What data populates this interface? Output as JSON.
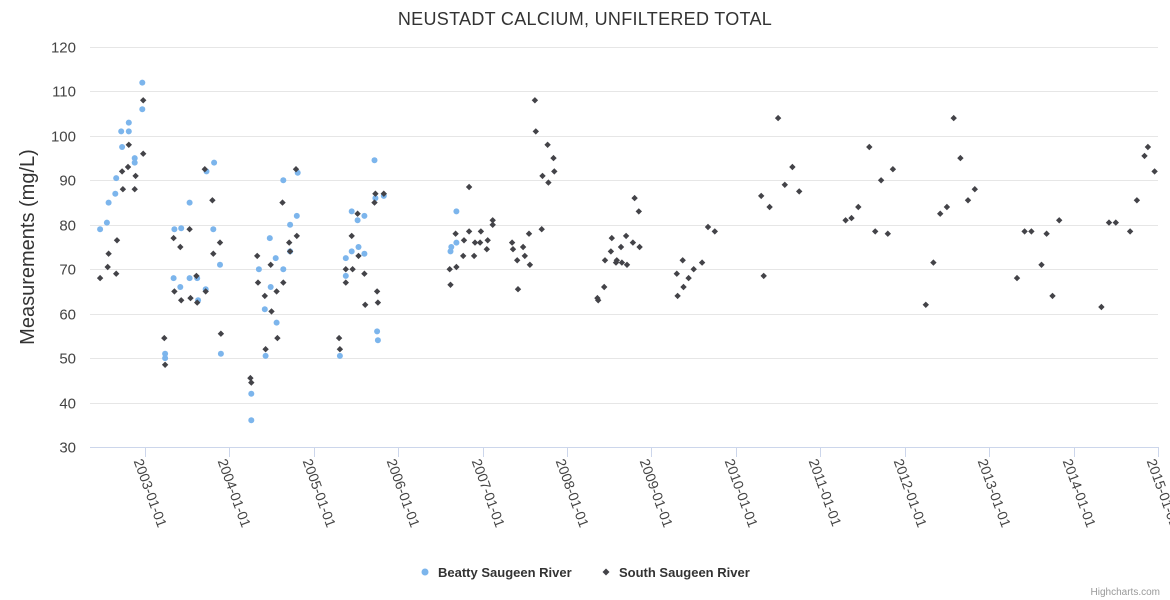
{
  "chart_data": {
    "type": "scatter",
    "title": "NEUSTADT CALCIUM, UNFILTERED TOTAL",
    "xlabel": "",
    "ylabel": "Measurements (mg/L)",
    "ylim": [
      30,
      120
    ],
    "yticks": [
      30,
      40,
      50,
      60,
      70,
      80,
      90,
      100,
      110,
      120
    ],
    "xlim": [
      2002.35,
      2015.0
    ],
    "xticks": [
      {
        "label": "2003-01-01",
        "value": 2003
      },
      {
        "label": "2004-01-01",
        "value": 2004
      },
      {
        "label": "2005-01-01",
        "value": 2005
      },
      {
        "label": "2006-01-01",
        "value": 2006
      },
      {
        "label": "2007-01-01",
        "value": 2007
      },
      {
        "label": "2008-01-01",
        "value": 2008
      },
      {
        "label": "2009-01-01",
        "value": 2009
      },
      {
        "label": "2010-01-01",
        "value": 2010
      },
      {
        "label": "2011-01-01",
        "value": 2011
      },
      {
        "label": "2012-01-01",
        "value": 2012
      },
      {
        "label": "2013-01-01",
        "value": 2013
      },
      {
        "label": "2014-01-01",
        "value": 2014
      },
      {
        "label": "2015-01-01",
        "value": 2015
      }
    ],
    "grid": true,
    "legend_position": "bottom-center",
    "series": [
      {
        "name": "Beatty Saugeen River",
        "marker": "circle",
        "color": "#7cb5ec",
        "points": [
          [
            2002.47,
            79
          ],
          [
            2002.55,
            80.5
          ],
          [
            2002.57,
            85
          ],
          [
            2002.65,
            87
          ],
          [
            2002.66,
            90.5
          ],
          [
            2002.72,
            101
          ],
          [
            2002.73,
            97.5
          ],
          [
            2002.81,
            101
          ],
          [
            2002.81,
            103
          ],
          [
            2002.88,
            95
          ],
          [
            2002.88,
            94
          ],
          [
            2002.97,
            112
          ],
          [
            2002.97,
            106
          ],
          [
            2003.24,
            51
          ],
          [
            2003.24,
            50
          ],
          [
            2003.34,
            68
          ],
          [
            2003.35,
            79
          ],
          [
            2003.42,
            66
          ],
          [
            2003.43,
            79.2
          ],
          [
            2003.53,
            68
          ],
          [
            2003.53,
            85
          ],
          [
            2003.62,
            68
          ],
          [
            2003.63,
            63
          ],
          [
            2003.72,
            65.5
          ],
          [
            2003.73,
            92
          ],
          [
            2003.81,
            79
          ],
          [
            2003.82,
            94
          ],
          [
            2003.89,
            71
          ],
          [
            2003.9,
            51
          ],
          [
            2004.26,
            42
          ],
          [
            2004.26,
            36
          ],
          [
            2004.35,
            70
          ],
          [
            2004.42,
            61
          ],
          [
            2004.43,
            50.5
          ],
          [
            2004.48,
            77
          ],
          [
            2004.49,
            66
          ],
          [
            2004.55,
            72.5
          ],
          [
            2004.56,
            58
          ],
          [
            2004.64,
            90
          ],
          [
            2004.64,
            70
          ],
          [
            2004.72,
            80
          ],
          [
            2004.72,
            74
          ],
          [
            2004.8,
            82
          ],
          [
            2004.81,
            91.7
          ],
          [
            2005.31,
            50.5
          ],
          [
            2005.38,
            68.5
          ],
          [
            2005.38,
            72.5
          ],
          [
            2005.45,
            83
          ],
          [
            2005.45,
            74
          ],
          [
            2005.52,
            81
          ],
          [
            2005.53,
            75
          ],
          [
            2005.6,
            82
          ],
          [
            2005.6,
            73.5
          ],
          [
            2005.72,
            94.5
          ],
          [
            2005.73,
            86
          ],
          [
            2005.75,
            56
          ],
          [
            2005.76,
            54
          ],
          [
            2005.83,
            86.5
          ],
          [
            2006.62,
            74
          ],
          [
            2006.63,
            75
          ],
          [
            2006.69,
            83
          ],
          [
            2006.69,
            76
          ]
        ]
      },
      {
        "name": "South Saugeen River",
        "marker": "diamond",
        "color": "#434348",
        "points": [
          [
            2002.47,
            68
          ],
          [
            2002.56,
            70.5
          ],
          [
            2002.57,
            73.5
          ],
          [
            2002.66,
            69
          ],
          [
            2002.67,
            76.5
          ],
          [
            2002.73,
            92
          ],
          [
            2002.74,
            88
          ],
          [
            2002.8,
            93
          ],
          [
            2002.81,
            98
          ],
          [
            2002.88,
            88
          ],
          [
            2002.89,
            91
          ],
          [
            2002.98,
            108
          ],
          [
            2002.98,
            96
          ],
          [
            2003.23,
            54.5
          ],
          [
            2003.24,
            48.5
          ],
          [
            2003.34,
            77
          ],
          [
            2003.35,
            65
          ],
          [
            2003.42,
            75
          ],
          [
            2003.43,
            63
          ],
          [
            2003.53,
            79
          ],
          [
            2003.54,
            63.5
          ],
          [
            2003.61,
            68.5
          ],
          [
            2003.62,
            62.5
          ],
          [
            2003.71,
            92.5
          ],
          [
            2003.72,
            65
          ],
          [
            2003.8,
            85.5
          ],
          [
            2003.81,
            73.5
          ],
          [
            2003.89,
            76
          ],
          [
            2003.9,
            55.5
          ],
          [
            2004.25,
            45.5
          ],
          [
            2004.26,
            44.5
          ],
          [
            2004.33,
            73
          ],
          [
            2004.34,
            67
          ],
          [
            2004.42,
            64
          ],
          [
            2004.43,
            52
          ],
          [
            2004.49,
            71
          ],
          [
            2004.5,
            60.5
          ],
          [
            2004.56,
            65
          ],
          [
            2004.57,
            54.5
          ],
          [
            2004.63,
            85
          ],
          [
            2004.64,
            67
          ],
          [
            2004.71,
            76
          ],
          [
            2004.72,
            74
          ],
          [
            2004.79,
            92.5
          ],
          [
            2004.8,
            77.5
          ],
          [
            2005.3,
            54.5
          ],
          [
            2005.31,
            52
          ],
          [
            2005.38,
            70
          ],
          [
            2005.38,
            67
          ],
          [
            2005.45,
            77.5
          ],
          [
            2005.46,
            70
          ],
          [
            2005.52,
            82.5
          ],
          [
            2005.53,
            73
          ],
          [
            2005.6,
            69
          ],
          [
            2005.61,
            62
          ],
          [
            2005.72,
            85
          ],
          [
            2005.73,
            87
          ],
          [
            2005.75,
            65
          ],
          [
            2005.76,
            62.5
          ],
          [
            2005.83,
            87
          ],
          [
            2006.61,
            70
          ],
          [
            2006.62,
            66.5
          ],
          [
            2006.68,
            78
          ],
          [
            2006.69,
            70.5
          ],
          [
            2006.77,
            73
          ],
          [
            2006.78,
            76.5
          ],
          [
            2006.84,
            88.5
          ],
          [
            2006.84,
            78.5
          ],
          [
            2006.9,
            73
          ],
          [
            2006.91,
            76
          ],
          [
            2006.97,
            76
          ],
          [
            2006.98,
            78.5
          ],
          [
            2007.05,
            74.5
          ],
          [
            2007.06,
            76.5
          ],
          [
            2007.12,
            80
          ],
          [
            2007.12,
            81
          ],
          [
            2007.35,
            76
          ],
          [
            2007.36,
            74.5
          ],
          [
            2007.41,
            72
          ],
          [
            2007.42,
            65.5
          ],
          [
            2007.48,
            75
          ],
          [
            2007.5,
            73
          ],
          [
            2007.55,
            78
          ],
          [
            2007.56,
            71
          ],
          [
            2007.62,
            108
          ],
          [
            2007.63,
            101
          ],
          [
            2007.7,
            79
          ],
          [
            2007.71,
            91
          ],
          [
            2007.77,
            98
          ],
          [
            2007.78,
            89.5
          ],
          [
            2007.84,
            95
          ],
          [
            2007.85,
            92
          ],
          [
            2008.36,
            63.5
          ],
          [
            2008.37,
            63
          ],
          [
            2008.44,
            66
          ],
          [
            2008.45,
            72
          ],
          [
            2008.52,
            74
          ],
          [
            2008.53,
            77
          ],
          [
            2008.58,
            71.5
          ],
          [
            2008.59,
            72
          ],
          [
            2008.64,
            75
          ],
          [
            2008.65,
            71.5
          ],
          [
            2008.7,
            77.5
          ],
          [
            2008.71,
            71
          ],
          [
            2008.78,
            76
          ],
          [
            2008.8,
            86
          ],
          [
            2008.85,
            83
          ],
          [
            2008.86,
            75
          ],
          [
            2009.3,
            69
          ],
          [
            2009.31,
            64
          ],
          [
            2009.37,
            72
          ],
          [
            2009.38,
            66
          ],
          [
            2009.44,
            68
          ],
          [
            2009.5,
            70
          ],
          [
            2009.6,
            71.5
          ],
          [
            2009.67,
            79.5
          ],
          [
            2009.75,
            78.5
          ],
          [
            2010.3,
            86.5
          ],
          [
            2010.33,
            68.5
          ],
          [
            2010.4,
            84
          ],
          [
            2010.5,
            104
          ],
          [
            2010.58,
            89
          ],
          [
            2010.67,
            93
          ],
          [
            2010.75,
            87.5
          ],
          [
            2011.3,
            81
          ],
          [
            2011.37,
            81.5
          ],
          [
            2011.45,
            84
          ],
          [
            2011.58,
            97.5
          ],
          [
            2011.65,
            78.5
          ],
          [
            2011.72,
            90
          ],
          [
            2011.8,
            78
          ],
          [
            2011.86,
            92.5
          ],
          [
            2012.25,
            62
          ],
          [
            2012.34,
            71.5
          ],
          [
            2012.42,
            82.5
          ],
          [
            2012.5,
            84
          ],
          [
            2012.58,
            104
          ],
          [
            2012.66,
            95
          ],
          [
            2012.75,
            85.5
          ],
          [
            2012.83,
            88
          ],
          [
            2013.33,
            68
          ],
          [
            2013.42,
            78.5
          ],
          [
            2013.5,
            78.5
          ],
          [
            2013.62,
            71
          ],
          [
            2013.68,
            78
          ],
          [
            2013.75,
            64
          ],
          [
            2013.83,
            81
          ],
          [
            2014.33,
            61.5
          ],
          [
            2014.42,
            80.5
          ],
          [
            2014.5,
            80.5
          ],
          [
            2014.67,
            78.5
          ],
          [
            2014.75,
            85.5
          ],
          [
            2014.84,
            95.5
          ],
          [
            2014.88,
            97.5
          ],
          [
            2014.96,
            92
          ]
        ]
      }
    ],
    "credits": "Highcharts.com"
  }
}
